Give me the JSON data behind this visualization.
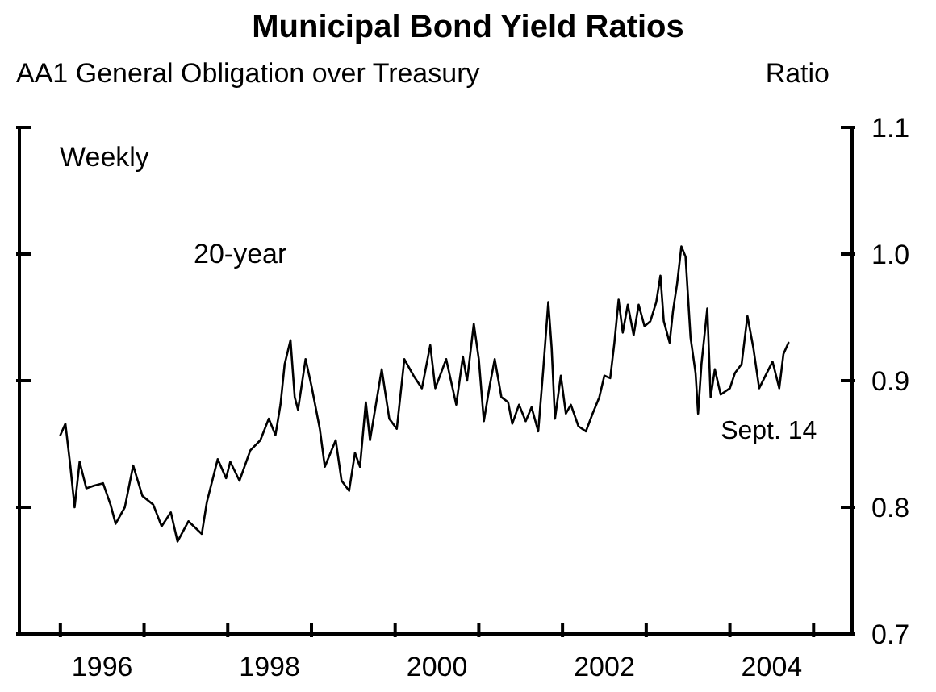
{
  "chart_data": {
    "type": "line",
    "title": "Municipal Bond Yield Ratios",
    "subtitle": "AA1 General Obligation over Treasury",
    "ylabel": "Ratio",
    "annotations": [
      "Weekly",
      {
        "text": "Sept. 14",
        "x": 2004.7,
        "y": 0.93
      }
    ],
    "xlim": [
      1995.51,
      2005.46
    ],
    "xticks": [
      {
        "value": 1996,
        "label": null
      },
      {
        "value": 1996.5,
        "label": "1996"
      },
      {
        "value": 1997,
        "label": null
      },
      {
        "value": 1998,
        "label": null
      },
      {
        "value": 1998.5,
        "label": "1998"
      },
      {
        "value": 1999,
        "label": null
      },
      {
        "value": 2000,
        "label": null
      },
      {
        "value": 2000.5,
        "label": "2000"
      },
      {
        "value": 2001,
        "label": null
      },
      {
        "value": 2002,
        "label": null
      },
      {
        "value": 2002.5,
        "label": "2002"
      },
      {
        "value": 2003,
        "label": null
      },
      {
        "value": 2004,
        "label": null
      },
      {
        "value": 2004.5,
        "label": "2004"
      },
      {
        "value": 2005,
        "label": null
      }
    ],
    "ylim": [
      0.7,
      1.1
    ],
    "yticks": [
      {
        "value": 0.7,
        "label": "0.7"
      },
      {
        "value": 0.8,
        "label": "0.8"
      },
      {
        "value": 0.9,
        "label": "0.9"
      },
      {
        "value": 1.0,
        "label": "1.0"
      },
      {
        "value": 1.1,
        "label": "1.1"
      }
    ],
    "grid": false,
    "marker": "none",
    "line_style": "solid",
    "series": [
      {
        "name": "20-year",
        "color": "#000000",
        "x": [
          1996.0,
          1996.06,
          1996.12,
          1996.17,
          1996.23,
          1996.31,
          1996.4,
          1996.51,
          1996.6,
          1996.66,
          1996.77,
          1996.87,
          1996.98,
          1997.11,
          1997.21,
          1997.32,
          1997.4,
          1997.53,
          1997.69,
          1997.75,
          1997.88,
          1997.98,
          1998.03,
          1998.14,
          1998.27,
          1998.39,
          1998.49,
          1998.57,
          1998.63,
          1998.68,
          1998.75,
          1998.8,
          1998.84,
          1998.93,
          1999.0,
          1999.1,
          1999.16,
          1999.29,
          1999.36,
          1999.45,
          1999.52,
          1999.58,
          1999.65,
          1999.7,
          1999.84,
          1999.93,
          2000.02,
          2000.11,
          2000.22,
          2000.32,
          2000.42,
          2000.48,
          2000.61,
          2000.73,
          2000.81,
          2000.86,
          2000.94,
          2001.0,
          2001.06,
          2001.13,
          2001.19,
          2001.27,
          2001.35,
          2001.4,
          2001.48,
          2001.56,
          2001.63,
          2001.71,
          2001.77,
          2001.83,
          2001.87,
          2001.91,
          2001.98,
          2002.04,
          2002.1,
          2002.19,
          2002.28,
          2002.36,
          2002.44,
          2002.5,
          2002.57,
          2002.62,
          2002.67,
          2002.72,
          2002.78,
          2002.85,
          2002.91,
          2002.98,
          2003.05,
          2003.12,
          2003.17,
          2003.21,
          2003.28,
          2003.32,
          2003.37,
          2003.42,
          2003.47,
          2003.53,
          2003.59,
          2003.62,
          2003.66,
          2003.73,
          2003.77,
          2003.82,
          2003.89,
          2004.0,
          2004.06,
          2004.14,
          2004.21,
          2004.28,
          2004.35,
          2004.44,
          2004.51,
          2004.59,
          2004.64,
          2004.7
        ],
        "values": [
          0.857,
          0.866,
          0.832,
          0.8,
          0.836,
          0.815,
          0.817,
          0.819,
          0.802,
          0.787,
          0.8,
          0.833,
          0.809,
          0.802,
          0.785,
          0.796,
          0.773,
          0.789,
          0.779,
          0.804,
          0.838,
          0.823,
          0.836,
          0.821,
          0.845,
          0.853,
          0.87,
          0.857,
          0.881,
          0.913,
          0.932,
          0.887,
          0.877,
          0.917,
          0.896,
          0.862,
          0.832,
          0.853,
          0.821,
          0.813,
          0.843,
          0.832,
          0.883,
          0.853,
          0.909,
          0.87,
          0.862,
          0.917,
          0.904,
          0.894,
          0.928,
          0.894,
          0.917,
          0.881,
          0.919,
          0.9,
          0.945,
          0.917,
          0.868,
          0.896,
          0.917,
          0.887,
          0.883,
          0.866,
          0.881,
          0.868,
          0.879,
          0.86,
          0.909,
          0.962,
          0.926,
          0.87,
          0.904,
          0.874,
          0.881,
          0.864,
          0.86,
          0.874,
          0.887,
          0.904,
          0.902,
          0.93,
          0.964,
          0.938,
          0.96,
          0.936,
          0.96,
          0.943,
          0.947,
          0.962,
          0.983,
          0.947,
          0.93,
          0.955,
          0.977,
          1.006,
          0.998,
          0.934,
          0.906,
          0.874,
          0.913,
          0.957,
          0.887,
          0.909,
          0.889,
          0.894,
          0.906,
          0.913,
          0.951,
          0.926,
          0.894,
          0.906,
          0.915,
          0.894,
          0.921,
          0.93
        ]
      }
    ]
  }
}
